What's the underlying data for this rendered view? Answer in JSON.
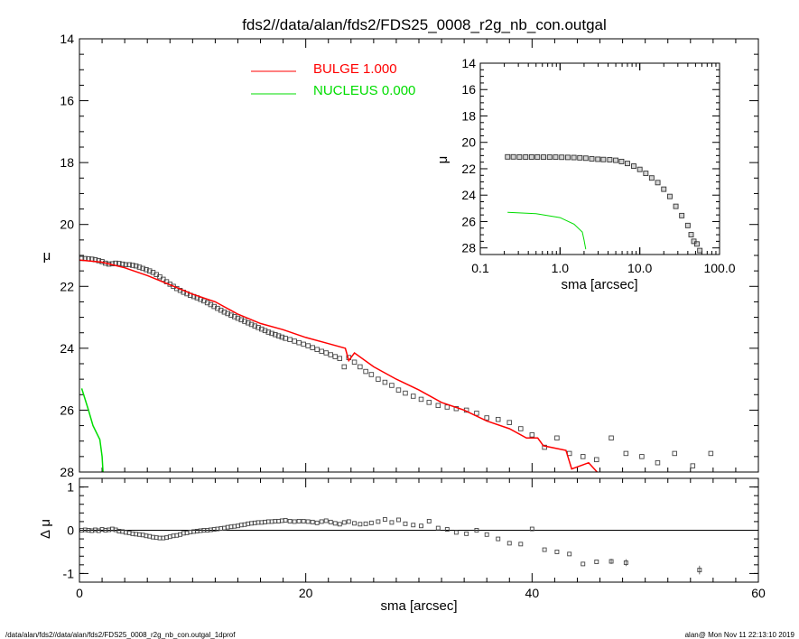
{
  "title": "fds2//data/alan/fds2/FDS25_0008_r2g_nb_con.outgal",
  "footer": {
    "left": "/data/alan/fds2//data/alan/fds2/FDS25_0008_r2g_nb_con.outgal_1dprof",
    "right": "alan@  Mon Nov 11 22:13:10 2019"
  },
  "legend": [
    {
      "label": "BULGE  1.000",
      "color": "#ff0000"
    },
    {
      "label": "NUCLEUS  0.000",
      "color": "#00dd00"
    }
  ],
  "chart_data": [
    {
      "id": "main",
      "type": "scatter",
      "xlabel": "",
      "ylabel": "μ",
      "xlim": [
        0,
        60
      ],
      "ylim": [
        28,
        14
      ],
      "y_inverted": true,
      "yticks": [
        "14",
        "16",
        "18",
        "20",
        "22",
        "24",
        "26",
        "28"
      ],
      "series": [
        {
          "name": "data",
          "kind": "markers",
          "x": [
            0.2,
            0.5,
            0.8,
            1.1,
            1.4,
            1.7,
            2.0,
            2.3,
            2.6,
            2.9,
            3.2,
            3.5,
            3.8,
            4.1,
            4.4,
            4.7,
            5.0,
            5.3,
            5.6,
            5.9,
            6.2,
            6.5,
            6.8,
            7.1,
            7.4,
            7.7,
            8.0,
            8.3,
            8.6,
            8.9,
            9.2,
            9.5,
            9.8,
            10.1,
            10.4,
            10.7,
            11.0,
            11.3,
            11.6,
            11.9,
            12.2,
            12.5,
            12.8,
            13.1,
            13.4,
            13.7,
            14.0,
            14.3,
            14.6,
            14.9,
            15.2,
            15.5,
            15.8,
            16.1,
            16.4,
            16.7,
            17.0,
            17.3,
            17.6,
            17.9,
            18.2,
            18.6,
            19.0,
            19.4,
            19.8,
            20.2,
            20.6,
            21.0,
            21.4,
            21.8,
            22.2,
            22.6,
            23.0,
            23.4,
            23.8,
            24.3,
            24.8,
            25.3,
            25.8,
            26.4,
            27.0,
            27.6,
            28.2,
            28.8,
            29.5,
            30.2,
            30.9,
            31.7,
            32.5,
            33.3,
            34.2,
            35.1,
            36.0,
            37.0,
            38.0,
            39.0,
            40.0,
            41.1,
            42.2,
            43.3,
            44.5,
            45.7,
            47.0,
            48.3,
            49.7,
            51.1,
            52.6,
            54.2,
            55.8
          ],
          "y": [
            21.1,
            21.1,
            21.11,
            21.12,
            21.14,
            21.17,
            21.2,
            21.25,
            21.28,
            21.27,
            21.25,
            21.26,
            21.28,
            21.3,
            21.3,
            21.32,
            21.34,
            21.38,
            21.42,
            21.46,
            21.5,
            21.55,
            21.62,
            21.69,
            21.77,
            21.85,
            21.93,
            22.0,
            22.07,
            22.13,
            22.19,
            22.24,
            22.29,
            22.33,
            22.37,
            22.42,
            22.47,
            22.53,
            22.59,
            22.65,
            22.71,
            22.77,
            22.83,
            22.88,
            22.93,
            22.98,
            23.03,
            23.08,
            23.13,
            23.18,
            23.23,
            23.28,
            23.33,
            23.38,
            23.43,
            23.48,
            23.52,
            23.56,
            23.6,
            23.64,
            23.68,
            23.72,
            23.77,
            23.82,
            23.87,
            23.92,
            23.98,
            24.04,
            24.1,
            24.15,
            24.21,
            24.27,
            24.33,
            24.6,
            24.3,
            24.45,
            24.6,
            24.75,
            24.85,
            25.0,
            25.1,
            25.2,
            25.35,
            25.45,
            25.55,
            25.65,
            25.75,
            25.85,
            25.9,
            25.95,
            26.0,
            26.1,
            26.25,
            26.3,
            26.4,
            26.6,
            26.8,
            27.2,
            26.9,
            27.4,
            27.5,
            27.6,
            26.9,
            27.4,
            27.5,
            27.7,
            27.4,
            27.8,
            27.4
          ],
          "err": [
            0.02,
            0.02,
            0.02,
            0.02,
            0.02,
            0.02,
            0.02,
            0.02,
            0.02,
            0.02,
            0.02,
            0.02,
            0.02,
            0.02,
            0.02,
            0.02,
            0.02,
            0.02,
            0.02,
            0.02,
            0.02,
            0.02,
            0.02,
            0.02,
            0.02,
            0.02,
            0.02,
            0.02,
            0.02,
            0.02,
            0.02,
            0.02,
            0.02,
            0.02,
            0.02,
            0.02,
            0.02,
            0.02,
            0.02,
            0.02,
            0.02,
            0.02,
            0.02,
            0.02,
            0.02,
            0.02,
            0.02,
            0.02,
            0.02,
            0.02,
            0.02,
            0.02,
            0.02,
            0.02,
            0.02,
            0.02,
            0.02,
            0.02,
            0.02,
            0.02,
            0.02,
            0.02,
            0.02,
            0.02,
            0.02,
            0.02,
            0.02,
            0.02,
            0.02,
            0.02,
            0.02,
            0.02,
            0.02,
            0.02,
            0.02,
            0.02,
            0.02,
            0.02,
            0.02,
            0.02,
            0.02,
            0.02,
            0.02,
            0.02,
            0.02,
            0.02,
            0.02,
            0.02,
            0.02,
            0.02,
            0.02,
            0.02,
            0.02,
            0.02,
            0.02,
            0.02,
            0.02,
            0.02,
            0.02,
            0.02,
            0.02,
            0.02,
            0.02,
            0.02,
            0.02,
            0.02,
            0.02,
            0.02,
            0.02
          ]
        },
        {
          "name": "BULGE",
          "kind": "line",
          "color": "#ff0000",
          "x": [
            0,
            2,
            4,
            6,
            8,
            10,
            12,
            14,
            16,
            18,
            20,
            22,
            23.5,
            23.8,
            24.3,
            26,
            28,
            30,
            32,
            34,
            36,
            38,
            39.5,
            40.5,
            41,
            43,
            43.5,
            45,
            46,
            47
          ],
          "y": [
            21.15,
            21.22,
            21.4,
            21.65,
            21.95,
            22.25,
            22.5,
            22.9,
            23.2,
            23.4,
            23.65,
            23.85,
            24.0,
            24.4,
            24.15,
            24.6,
            25.0,
            25.35,
            25.75,
            26.0,
            26.35,
            26.6,
            26.9,
            26.9,
            27.15,
            27.3,
            27.9,
            27.7,
            28.1,
            28.2
          ]
        },
        {
          "name": "NUCLEUS",
          "kind": "line",
          "color": "#00dd00",
          "x": [
            0.2,
            0.8,
            1.2,
            1.8,
            2.0,
            2.1
          ],
          "y": [
            25.3,
            26.0,
            26.5,
            26.95,
            27.5,
            28.1
          ]
        }
      ]
    },
    {
      "id": "residual",
      "type": "scatter",
      "xlabel": "sma [arcsec]",
      "ylabel": "Δ μ",
      "xlim": [
        0,
        60
      ],
      "ylim": [
        -1.2,
        1.2
      ],
      "xticks": [
        "0",
        "20",
        "40",
        "60"
      ],
      "yticks": [
        "1",
        "0",
        "-1"
      ],
      "zero_line": true,
      "x": [
        0.2,
        0.5,
        0.8,
        1.1,
        1.4,
        1.7,
        2.0,
        2.3,
        2.6,
        2.9,
        3.2,
        3.5,
        3.8,
        4.1,
        4.4,
        4.7,
        5.0,
        5.3,
        5.6,
        5.9,
        6.2,
        6.5,
        6.8,
        7.1,
        7.4,
        7.7,
        8.0,
        8.3,
        8.6,
        8.9,
        9.2,
        9.5,
        9.8,
        10.1,
        10.4,
        10.7,
        11.0,
        11.3,
        11.6,
        11.9,
        12.2,
        12.5,
        12.8,
        13.1,
        13.4,
        13.7,
        14.0,
        14.3,
        14.6,
        14.9,
        15.2,
        15.5,
        15.8,
        16.1,
        16.4,
        16.7,
        17.0,
        17.3,
        17.6,
        17.9,
        18.2,
        18.6,
        19.0,
        19.4,
        19.8,
        20.2,
        20.6,
        21.0,
        21.4,
        21.8,
        22.2,
        22.6,
        23.0,
        23.4,
        23.8,
        24.3,
        24.8,
        25.3,
        25.8,
        26.4,
        27.0,
        27.6,
        28.2,
        28.8,
        29.5,
        30.2,
        30.9,
        31.7,
        32.5,
        33.3,
        34.2,
        35.1,
        36.0,
        37.0,
        38.0,
        39.0,
        40.0,
        41.1,
        42.2,
        43.3,
        44.5,
        45.7,
        47.0,
        48.3,
        54.8
      ],
      "y": [
        0.0,
        0.01,
        0.0,
        -0.01,
        0.01,
        -0.01,
        0.02,
        0.0,
        0.01,
        0.03,
        0.01,
        -0.02,
        -0.03,
        -0.05,
        -0.06,
        -0.08,
        -0.09,
        -0.1,
        -0.11,
        -0.13,
        -0.14,
        -0.16,
        -0.17,
        -0.18,
        -0.18,
        -0.17,
        -0.15,
        -0.13,
        -0.12,
        -0.1,
        -0.07,
        -0.06,
        -0.04,
        -0.03,
        -0.02,
        -0.01,
        0.0,
        0.0,
        0.01,
        0.02,
        0.03,
        0.04,
        0.05,
        0.07,
        0.08,
        0.09,
        0.1,
        0.12,
        0.13,
        0.15,
        0.16,
        0.17,
        0.18,
        0.18,
        0.19,
        0.2,
        0.2,
        0.21,
        0.21,
        0.22,
        0.23,
        0.21,
        0.2,
        0.21,
        0.21,
        0.2,
        0.19,
        0.17,
        0.2,
        0.22,
        0.19,
        0.16,
        0.14,
        0.18,
        0.2,
        0.16,
        0.14,
        0.15,
        0.17,
        0.2,
        0.25,
        0.18,
        0.24,
        0.15,
        0.12,
        0.1,
        0.21,
        0.05,
        0.02,
        -0.05,
        -0.08,
        0.0,
        -0.1,
        -0.2,
        -0.3,
        -0.32,
        0.03,
        -0.45,
        -0.5,
        -0.55,
        -0.78,
        -0.73,
        -0.72,
        -0.75,
        -0.92
      ],
      "err": [
        0.02,
        0.02,
        0.02,
        0.02,
        0.02,
        0.02,
        0.02,
        0.02,
        0.02,
        0.02,
        0.02,
        0.02,
        0.02,
        0.02,
        0.02,
        0.02,
        0.02,
        0.02,
        0.02,
        0.02,
        0.02,
        0.02,
        0.02,
        0.02,
        0.02,
        0.02,
        0.02,
        0.02,
        0.02,
        0.02,
        0.02,
        0.02,
        0.02,
        0.02,
        0.02,
        0.02,
        0.02,
        0.02,
        0.02,
        0.02,
        0.02,
        0.02,
        0.02,
        0.02,
        0.02,
        0.02,
        0.02,
        0.02,
        0.02,
        0.02,
        0.02,
        0.02,
        0.02,
        0.02,
        0.02,
        0.02,
        0.02,
        0.02,
        0.02,
        0.02,
        0.02,
        0.02,
        0.02,
        0.02,
        0.02,
        0.02,
        0.02,
        0.02,
        0.02,
        0.02,
        0.02,
        0.02,
        0.02,
        0.02,
        0.02,
        0.02,
        0.02,
        0.02,
        0.02,
        0.02,
        0.02,
        0.02,
        0.02,
        0.02,
        0.02,
        0.02,
        0.02,
        0.02,
        0.02,
        0.02,
        0.02,
        0.02,
        0.02,
        0.02,
        0.02,
        0.02,
        0.02,
        0.02,
        0.02,
        0.02,
        0.04,
        0.05,
        0.06,
        0.08,
        0.1
      ]
    },
    {
      "id": "inset",
      "type": "scatter",
      "xscale": "log",
      "xlabel": "sma [arcsec]",
      "ylabel": "μ",
      "xlim": [
        0.1,
        100
      ],
      "ylim": [
        28.5,
        14
      ],
      "y_inverted": true,
      "xticks": [
        "0.1",
        "1.0",
        "10.0",
        "100.0"
      ],
      "yticks": [
        "14",
        "16",
        "18",
        "20",
        "22",
        "24",
        "26",
        "28"
      ],
      "series": [
        {
          "name": "data",
          "kind": "markers",
          "x": [
            0.22,
            0.26,
            0.31,
            0.37,
            0.44,
            0.52,
            0.62,
            0.74,
            0.88,
            1.05,
            1.25,
            1.49,
            1.77,
            2.1,
            2.5,
            2.98,
            3.5,
            4.2,
            5.0,
            5.9,
            7.0,
            8.4,
            10.0,
            11.9,
            14.1,
            16.8,
            20.0,
            23.8,
            28.3,
            33.6,
            40.0,
            44.0,
            47.6,
            52.0,
            56.6
          ],
          "y": [
            21.1,
            21.1,
            21.11,
            21.11,
            21.11,
            21.11,
            21.12,
            21.12,
            21.12,
            21.13,
            21.14,
            21.15,
            21.17,
            21.2,
            21.25,
            21.28,
            21.3,
            21.32,
            21.36,
            21.45,
            21.6,
            21.8,
            22.05,
            22.35,
            22.7,
            23.05,
            23.55,
            24.1,
            24.85,
            25.55,
            26.3,
            27.0,
            27.5,
            27.7,
            28.2
          ]
        },
        {
          "name": "NUCLEUS",
          "kind": "line",
          "color": "#00dd00",
          "x": [
            0.22,
            0.5,
            1.0,
            1.5,
            1.9,
            2.0,
            2.1
          ],
          "y": [
            25.3,
            25.4,
            25.7,
            26.2,
            26.8,
            27.4,
            28.1
          ]
        }
      ]
    }
  ]
}
